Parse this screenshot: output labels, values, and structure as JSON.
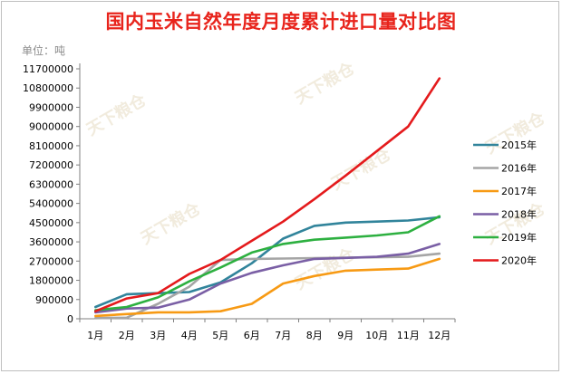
{
  "chart_data": {
    "type": "line",
    "title": "国内玉米自然年度月度累计进口量对比图",
    "unit_label": "单位：吨",
    "categories": [
      "1月",
      "2月",
      "3月",
      "4月",
      "5月",
      "6月",
      "7月",
      "8月",
      "9月",
      "10月",
      "11月",
      "12月"
    ],
    "yticks": [
      0,
      900000,
      1800000,
      2700000,
      3600000,
      4500000,
      5400000,
      6300000,
      7200000,
      8100000,
      9000000,
      9900000,
      10800000,
      11700000
    ],
    "ylim": [
      0,
      11700000
    ],
    "grid": false,
    "legend_position": "right",
    "series": [
      {
        "name": "2015年",
        "color": "#31849b",
        "values": [
          550000,
          1150000,
          1200000,
          1250000,
          1700000,
          2600000,
          3750000,
          4350000,
          4500000,
          4550000,
          4600000,
          4750000
        ]
      },
      {
        "name": "2016年",
        "color": "#a5a5a5",
        "values": [
          30000,
          50000,
          700000,
          1500000,
          2750000,
          2800000,
          2820000,
          2840000,
          2860000,
          2880000,
          2900000,
          3050000
        ]
      },
      {
        "name": "2017年",
        "color": "#f79a14",
        "values": [
          130000,
          220000,
          300000,
          300000,
          350000,
          700000,
          1650000,
          2000000,
          2250000,
          2300000,
          2350000,
          2800000
        ]
      },
      {
        "name": "2018年",
        "color": "#7a5fa5",
        "values": [
          300000,
          480000,
          520000,
          900000,
          1650000,
          2150000,
          2500000,
          2800000,
          2850000,
          2900000,
          3050000,
          3500000
        ]
      },
      {
        "name": "2019年",
        "color": "#2db040",
        "values": [
          400000,
          550000,
          1000000,
          1750000,
          2400000,
          3100000,
          3500000,
          3700000,
          3800000,
          3900000,
          4050000,
          4800000
        ]
      },
      {
        "name": "2020年",
        "color": "#e41a1c",
        "values": [
          350000,
          950000,
          1200000,
          2100000,
          2750000,
          3650000,
          4550000,
          5600000,
          6700000,
          7850000,
          9000000,
          11250000
        ]
      }
    ],
    "watermark": "天下粮仓"
  }
}
